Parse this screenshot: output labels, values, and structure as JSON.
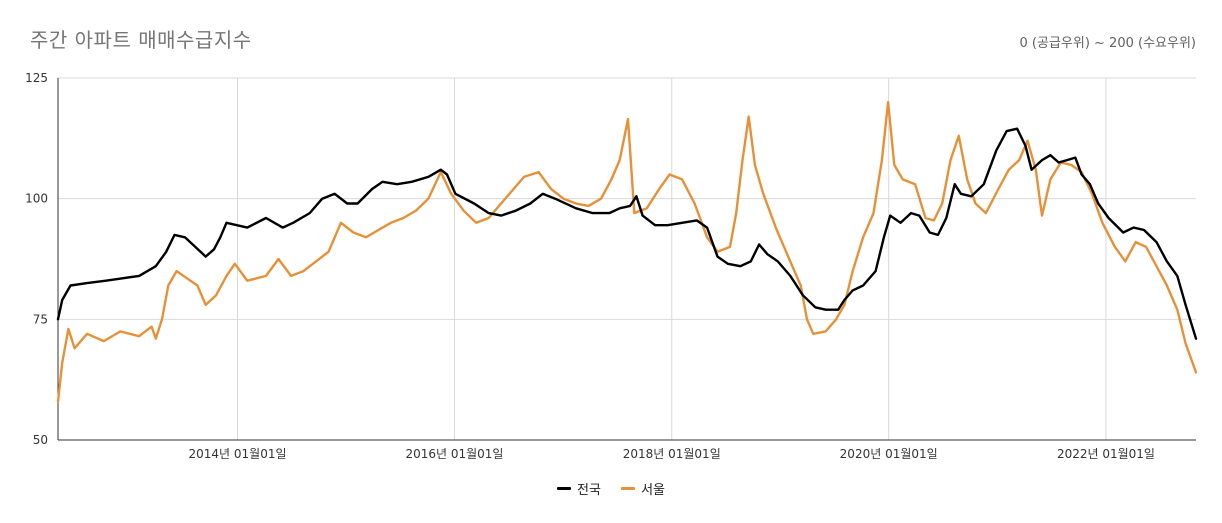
{
  "chart_data": {
    "type": "line",
    "title": "주간 아파트 매매수급지수",
    "subtitle": "0 (공급우위) ~ 200 (수요우위)",
    "xlabel": "",
    "ylabel": "",
    "ylim": [
      50,
      125
    ],
    "yticks": [
      "50",
      "75",
      "100",
      "125"
    ],
    "xlim": [
      "2012-05-07",
      "2022-10-31"
    ],
    "xticks": [
      {
        "date": "2014-01-01",
        "label": "2014년 01월01일"
      },
      {
        "date": "2016-01-01",
        "label": "2016년 01월01일"
      },
      {
        "date": "2018-01-01",
        "label": "2018년 01월01일"
      },
      {
        "date": "2020-01-01",
        "label": "2020년 01월01일"
      },
      {
        "date": "2022-01-01",
        "label": "2022년 01월01일"
      }
    ],
    "grid": true,
    "legend_position": "bottom",
    "series": [
      {
        "name": "전국",
        "color": "#000000",
        "points": [
          [
            "2012-05-07",
            75
          ],
          [
            "2012-05-21",
            79
          ],
          [
            "2012-06-18",
            82
          ],
          [
            "2012-08-13",
            82.5
          ],
          [
            "2012-10-15",
            83
          ],
          [
            "2012-12-10",
            83.5
          ],
          [
            "2013-02-04",
            84
          ],
          [
            "2013-04-01",
            86
          ],
          [
            "2013-05-06",
            89
          ],
          [
            "2013-06-03",
            92.5
          ],
          [
            "2013-07-08",
            92
          ],
          [
            "2013-08-12",
            90
          ],
          [
            "2013-09-16",
            88
          ],
          [
            "2013-10-14",
            89.5
          ],
          [
            "2013-11-04",
            92
          ],
          [
            "2013-11-25",
            95
          ],
          [
            "2014-02-03",
            94
          ],
          [
            "2014-04-07",
            96
          ],
          [
            "2014-06-02",
            94
          ],
          [
            "2014-07-07",
            95
          ],
          [
            "2014-09-01",
            97
          ],
          [
            "2014-10-13",
            100
          ],
          [
            "2014-11-24",
            101
          ],
          [
            "2015-01-05",
            99
          ],
          [
            "2015-02-09",
            99
          ],
          [
            "2015-03-30",
            102
          ],
          [
            "2015-05-04",
            103.5
          ],
          [
            "2015-06-22",
            103
          ],
          [
            "2015-08-10",
            103.5
          ],
          [
            "2015-10-05",
            104.5
          ],
          [
            "2015-11-16",
            106
          ],
          [
            "2015-12-07",
            105
          ],
          [
            "2016-01-04",
            101
          ],
          [
            "2016-03-07",
            99
          ],
          [
            "2016-04-25",
            97
          ],
          [
            "2016-06-06",
            96.5
          ],
          [
            "2016-07-25",
            97.5
          ],
          [
            "2016-09-12",
            99
          ],
          [
            "2016-10-24",
            101
          ],
          [
            "2016-12-05",
            100
          ],
          [
            "2017-02-13",
            98
          ],
          [
            "2017-04-10",
            97
          ],
          [
            "2017-06-05",
            97
          ],
          [
            "2017-07-10",
            98
          ],
          [
            "2017-08-14",
            98.5
          ],
          [
            "2017-09-04",
            100.5
          ],
          [
            "2017-09-25",
            96.5
          ],
          [
            "2017-11-06",
            94.5
          ],
          [
            "2017-12-18",
            94.5
          ],
          [
            "2018-02-05",
            95
          ],
          [
            "2018-03-26",
            95.5
          ],
          [
            "2018-04-30",
            94
          ],
          [
            "2018-06-04",
            88
          ],
          [
            "2018-07-09",
            86.5
          ],
          [
            "2018-08-20",
            86
          ],
          [
            "2018-09-24",
            87
          ],
          [
            "2018-10-22",
            90.5
          ],
          [
            "2018-11-19",
            88.5
          ],
          [
            "2018-12-24",
            87
          ],
          [
            "2019-02-04",
            84
          ],
          [
            "2019-03-18",
            80
          ],
          [
            "2019-04-29",
            77.5
          ],
          [
            "2019-06-03",
            77
          ],
          [
            "2019-07-15",
            77
          ],
          [
            "2019-08-05",
            79
          ],
          [
            "2019-09-02",
            81
          ],
          [
            "2019-10-07",
            82
          ],
          [
            "2019-11-18",
            85
          ],
          [
            "2019-12-16",
            92
          ],
          [
            "2020-01-06",
            96.5
          ],
          [
            "2020-02-10",
            95
          ],
          [
            "2020-03-16",
            97
          ],
          [
            "2020-04-13",
            96.5
          ],
          [
            "2020-05-18",
            93
          ],
          [
            "2020-06-15",
            92.5
          ],
          [
            "2020-07-13",
            96
          ],
          [
            "2020-08-10",
            103
          ],
          [
            "2020-08-31",
            101
          ],
          [
            "2020-10-05",
            100.5
          ],
          [
            "2020-11-16",
            103
          ],
          [
            "2020-12-28",
            110
          ],
          [
            "2021-02-01",
            114
          ],
          [
            "2021-03-08",
            114.5
          ],
          [
            "2021-04-05",
            111
          ],
          [
            "2021-04-26",
            106
          ],
          [
            "2021-05-31",
            108
          ],
          [
            "2021-06-28",
            109
          ],
          [
            "2021-07-26",
            107.5
          ],
          [
            "2021-08-23",
            108
          ],
          [
            "2021-09-20",
            108.5
          ],
          [
            "2021-10-11",
            105
          ],
          [
            "2021-11-08",
            103
          ],
          [
            "2021-12-06",
            99
          ],
          [
            "2022-01-10",
            96
          ],
          [
            "2022-02-28",
            93
          ],
          [
            "2022-04-04",
            94
          ],
          [
            "2022-05-09",
            93.5
          ],
          [
            "2022-06-20",
            91
          ],
          [
            "2022-07-25",
            87
          ],
          [
            "2022-08-29",
            84
          ],
          [
            "2022-09-26",
            78
          ],
          [
            "2022-10-31",
            71
          ]
        ]
      },
      {
        "name": "서울",
        "color": "#e69138",
        "points": [
          [
            "2012-05-07",
            58
          ],
          [
            "2012-05-21",
            66
          ],
          [
            "2012-06-11",
            73
          ],
          [
            "2012-07-02",
            69
          ],
          [
            "2012-08-13",
            72
          ],
          [
            "2012-10-08",
            70.5
          ],
          [
            "2012-12-03",
            72.5
          ],
          [
            "2013-02-04",
            71.5
          ],
          [
            "2013-03-18",
            73.5
          ],
          [
            "2013-04-01",
            71
          ],
          [
            "2013-04-22",
            75
          ],
          [
            "2013-05-13",
            82
          ],
          [
            "2013-06-10",
            85
          ],
          [
            "2013-07-15",
            83.5
          ],
          [
            "2013-08-19",
            82
          ],
          [
            "2013-09-16",
            78
          ],
          [
            "2013-10-21",
            80
          ],
          [
            "2013-11-25",
            84
          ],
          [
            "2013-12-23",
            86.5
          ],
          [
            "2014-02-03",
            83
          ],
          [
            "2014-04-07",
            84
          ],
          [
            "2014-05-19",
            87.5
          ],
          [
            "2014-06-30",
            84
          ],
          [
            "2014-08-11",
            85
          ],
          [
            "2014-09-22",
            87
          ],
          [
            "2014-11-03",
            89
          ],
          [
            "2014-12-15",
            95
          ],
          [
            "2015-01-26",
            93
          ],
          [
            "2015-03-09",
            92
          ],
          [
            "2015-04-20",
            93.5
          ],
          [
            "2015-06-01",
            95
          ],
          [
            "2015-07-13",
            96
          ],
          [
            "2015-08-24",
            97.5
          ],
          [
            "2015-10-05",
            100
          ],
          [
            "2015-11-16",
            105.5
          ],
          [
            "2015-12-21",
            101
          ],
          [
            "2016-02-01",
            97.5
          ],
          [
            "2016-03-14",
            95
          ],
          [
            "2016-04-25",
            96
          ],
          [
            "2016-06-06",
            99
          ],
          [
            "2016-07-18",
            102
          ],
          [
            "2016-08-22",
            104.5
          ],
          [
            "2016-10-10",
            105.5
          ],
          [
            "2016-11-21",
            102
          ],
          [
            "2017-01-02",
            100
          ],
          [
            "2017-02-13",
            99
          ],
          [
            "2017-03-27",
            98.5
          ],
          [
            "2017-05-08",
            100
          ],
          [
            "2017-06-12",
            104
          ],
          [
            "2017-07-10",
            108
          ],
          [
            "2017-08-07",
            116.5
          ],
          [
            "2017-08-28",
            97
          ],
          [
            "2017-10-09",
            98
          ],
          [
            "2017-11-20",
            102
          ],
          [
            "2017-12-25",
            105
          ],
          [
            "2018-02-05",
            104
          ],
          [
            "2018-03-19",
            99
          ],
          [
            "2018-04-30",
            92
          ],
          [
            "2018-06-04",
            89
          ],
          [
            "2018-07-16",
            90
          ],
          [
            "2018-08-06",
            97
          ],
          [
            "2018-08-27",
            108
          ],
          [
            "2018-09-17",
            117
          ],
          [
            "2018-10-08",
            107
          ],
          [
            "2018-11-05",
            101
          ],
          [
            "2018-12-17",
            94
          ],
          [
            "2019-01-28",
            88
          ],
          [
            "2019-03-11",
            82
          ],
          [
            "2019-04-01",
            75
          ],
          [
            "2019-04-22",
            72
          ],
          [
            "2019-06-03",
            72.5
          ],
          [
            "2019-07-08",
            75
          ],
          [
            "2019-08-05",
            78
          ],
          [
            "2019-09-02",
            85
          ],
          [
            "2019-10-07",
            92
          ],
          [
            "2019-11-11",
            97
          ],
          [
            "2019-12-09",
            108
          ],
          [
            "2019-12-30",
            120
          ],
          [
            "2020-01-20",
            107
          ],
          [
            "2020-02-17",
            104
          ],
          [
            "2020-03-30",
            103
          ],
          [
            "2020-05-04",
            96
          ],
          [
            "2020-06-01",
            95.5
          ],
          [
            "2020-06-29",
            99
          ],
          [
            "2020-07-27",
            108
          ],
          [
            "2020-08-24",
            113
          ],
          [
            "2020-09-21",
            104
          ],
          [
            "2020-10-19",
            99
          ],
          [
            "2020-11-23",
            97
          ],
          [
            "2021-01-04",
            102
          ],
          [
            "2021-02-08",
            106
          ],
          [
            "2021-03-15",
            108
          ],
          [
            "2021-04-12",
            112
          ],
          [
            "2021-05-10",
            106
          ],
          [
            "2021-05-31",
            96.5
          ],
          [
            "2021-06-28",
            104
          ],
          [
            "2021-08-02",
            107.5
          ],
          [
            "2021-09-06",
            107
          ],
          [
            "2021-10-11",
            105.5
          ],
          [
            "2021-11-15",
            101
          ],
          [
            "2021-12-20",
            95
          ],
          [
            "2022-01-31",
            90
          ],
          [
            "2022-03-07",
            87
          ],
          [
            "2022-04-11",
            91
          ],
          [
            "2022-05-16",
            90
          ],
          [
            "2022-06-20",
            86
          ],
          [
            "2022-07-25",
            82
          ],
          [
            "2022-08-29",
            77
          ],
          [
            "2022-09-26",
            70
          ],
          [
            "2022-10-31",
            64
          ]
        ]
      }
    ]
  }
}
